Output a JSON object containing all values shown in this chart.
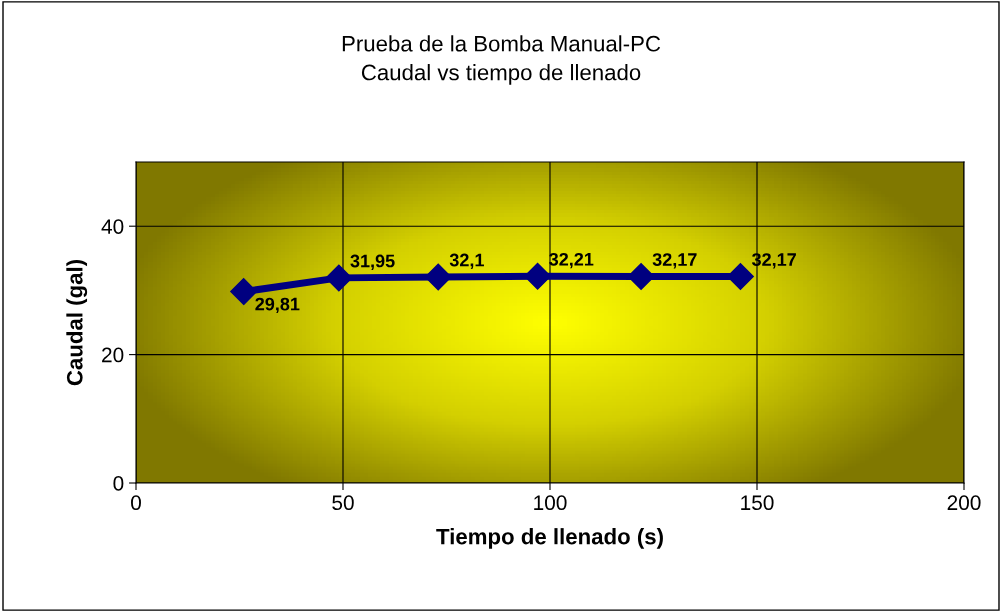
{
  "chart_data": {
    "type": "line",
    "title": "Prueba de la Bomba Manual-PC\nCaudal vs tiempo de llenado",
    "xlabel": "Tiempo de llenado (s)",
    "ylabel": "Caudal (gal)",
    "x": [
      26,
      49,
      73,
      97,
      122,
      146
    ],
    "series": [
      {
        "color": "#000080",
        "values": [
          29.81,
          31.95,
          32.1,
          32.21,
          32.17,
          32.17
        ],
        "value_labels": [
          "29,81",
          "31,95",
          "32,1",
          "32,21",
          "32,17",
          "32,17"
        ]
      }
    ],
    "xlim": [
      0,
      200
    ],
    "xticks": [
      0,
      50,
      100,
      150,
      200
    ],
    "ylim": [
      0,
      50
    ],
    "yticks": [
      0,
      20,
      40
    ],
    "grid": true,
    "marker": "diamond",
    "line_style": "solid"
  }
}
